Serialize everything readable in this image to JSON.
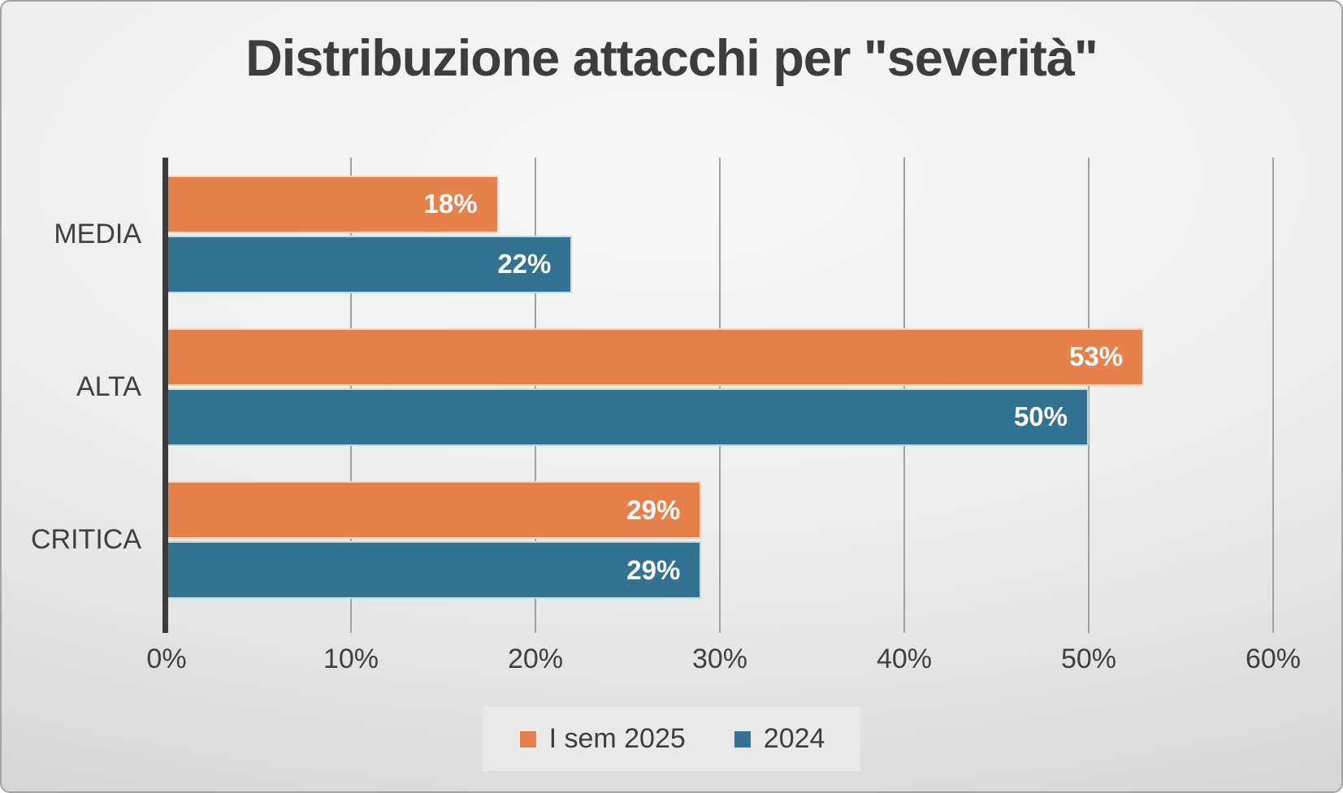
{
  "title": "Distribuzione attacchi per \"severità\"",
  "chart_data": {
    "type": "bar",
    "orientation": "horizontal",
    "title": "Distribuzione attacchi per \"severità\"",
    "categories": [
      "MEDIA",
      "ALTA",
      "CRITICA"
    ],
    "series": [
      {
        "name": "I sem 2025",
        "color": "#E6814B",
        "values": [
          18,
          53,
          29
        ]
      },
      {
        "name": "2024",
        "color": "#317390",
        "values": [
          22,
          50,
          29
        ]
      }
    ],
    "value_suffix": "%",
    "data_label_position": "inside-end",
    "xlim": [
      0,
      60
    ],
    "x_ticks": [
      "0%",
      "10%",
      "20%",
      "30%",
      "40%",
      "50%",
      "60%"
    ],
    "grid": true,
    "legend_position": "bottom"
  },
  "colors": {
    "series_1": "#E6814B",
    "series_2": "#317390",
    "text": "#3d3d3d",
    "axis": "#3b3b3b",
    "gridline": "#a0a0a0"
  }
}
